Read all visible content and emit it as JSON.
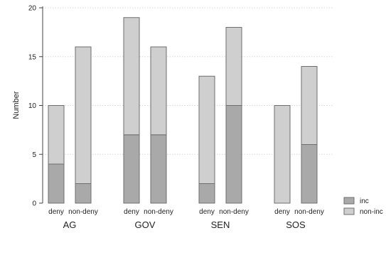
{
  "chart_data": {
    "type": "bar",
    "stacked": true,
    "ylabel": "Number",
    "ylim": [
      0,
      20
    ],
    "yticks": [
      0,
      5,
      10,
      15,
      20
    ],
    "grid": true,
    "legend_position": "right",
    "groups": [
      "AG",
      "GOV",
      "SEN",
      "SOS"
    ],
    "categories": [
      "deny",
      "non-deny"
    ],
    "series": [
      {
        "name": "inc",
        "color": "#a9a9a9",
        "values": [
          [
            4,
            2
          ],
          [
            7,
            7
          ],
          [
            2,
            10
          ],
          [
            0,
            6
          ]
        ]
      },
      {
        "name": "non-inc",
        "color": "#cfcfcf",
        "values": [
          [
            6,
            14
          ],
          [
            12,
            9
          ],
          [
            11,
            8
          ],
          [
            10,
            8
          ]
        ]
      }
    ]
  }
}
